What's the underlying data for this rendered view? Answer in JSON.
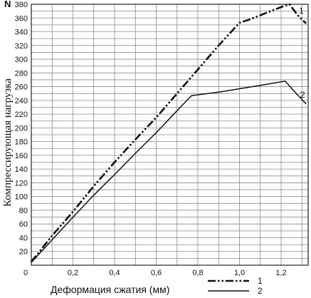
{
  "chart_data": {
    "type": "line",
    "xlabel": "Деформация сжатия (мм)",
    "ylabel": "Компрессирующая нагрузка",
    "yunit": "N",
    "xlim": [
      0,
      1.33
    ],
    "ylim": [
      0,
      380
    ],
    "x_ticks": [
      {
        "value": 0,
        "label": "0"
      },
      {
        "value": 0.2,
        "label": "0,2"
      },
      {
        "value": 0.4,
        "label": "0,4"
      },
      {
        "value": 0.6,
        "label": "0,6"
      },
      {
        "value": 0.8,
        "label": "0,8"
      },
      {
        "value": 1.0,
        "label": "1,0"
      },
      {
        "value": 1.2,
        "label": "1,2"
      }
    ],
    "y_ticks": [
      {
        "value": 20,
        "label": "20"
      },
      {
        "value": 40,
        "label": "40"
      },
      {
        "value": 60,
        "label": "60"
      },
      {
        "value": 80,
        "label": "80"
      },
      {
        "value": 100,
        "label": "100"
      },
      {
        "value": 120,
        "label": "120"
      },
      {
        "value": 140,
        "label": "140"
      },
      {
        "value": 160,
        "label": "160"
      },
      {
        "value": 180,
        "label": "180"
      },
      {
        "value": 200,
        "label": "200"
      },
      {
        "value": 220,
        "label": "220"
      },
      {
        "value": 240,
        "label": "240"
      },
      {
        "value": 260,
        "label": "260"
      },
      {
        "value": 280,
        "label": "280"
      },
      {
        "value": 300,
        "label": "300"
      },
      {
        "value": 320,
        "label": "320"
      },
      {
        "value": 340,
        "label": "340"
      },
      {
        "value": 360,
        "label": "360"
      },
      {
        "value": 380,
        "label": "380"
      }
    ],
    "grid": true,
    "legend_position": "bottom-right",
    "series": [
      {
        "name": "1",
        "style": "dash-dot-dot",
        "x": [
          0.0,
          0.1,
          0.2,
          0.3,
          0.4,
          0.5,
          0.6,
          0.7,
          0.8,
          0.9,
          1.0,
          1.05,
          1.1,
          1.15,
          1.2,
          1.24,
          1.28,
          1.32
        ],
        "y": [
          5,
          43,
          78,
          115,
          150,
          183,
          215,
          250,
          285,
          320,
          353,
          358,
          364,
          370,
          376,
          380,
          364,
          352
        ]
      },
      {
        "name": "2",
        "style": "solid",
        "x": [
          0.0,
          0.1,
          0.2,
          0.3,
          0.4,
          0.5,
          0.6,
          0.7,
          0.77,
          0.9,
          1.0,
          1.1,
          1.2,
          1.22,
          1.27,
          1.32
        ],
        "y": [
          4,
          37,
          70,
          102,
          132,
          163,
          193,
          225,
          247,
          252,
          257,
          262,
          267,
          268,
          251,
          235
        ]
      }
    ]
  }
}
